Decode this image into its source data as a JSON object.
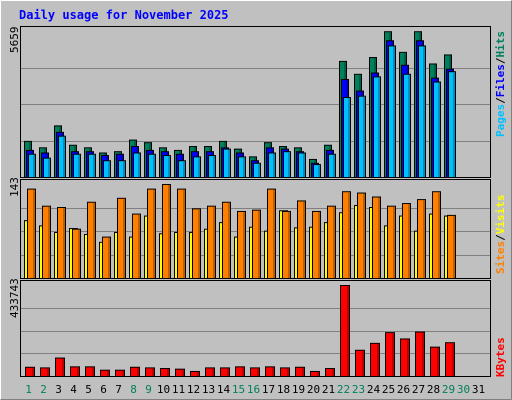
{
  "chart_data": {
    "type": "bar",
    "title": "Daily usage for November 2025",
    "categories": [
      "1",
      "2",
      "3",
      "4",
      "5",
      "6",
      "7",
      "8",
      "9",
      "10",
      "11",
      "12",
      "13",
      "14",
      "15",
      "16",
      "17",
      "18",
      "19",
      "20",
      "21",
      "22",
      "23",
      "24",
      "25",
      "26",
      "27",
      "28",
      "29",
      "30",
      "31"
    ],
    "weekend_days": [
      "1",
      "2",
      "8",
      "9",
      "15",
      "16",
      "22",
      "23",
      "29",
      "30"
    ],
    "panels": [
      {
        "name": "pages-files-hits",
        "ymax_label": "5659",
        "ymax": 5659,
        "grid": true,
        "legend_right": [
          "Pages",
          "/",
          "Files",
          "/",
          "Hits"
        ],
        "series": [
          {
            "name": "Hits",
            "color": "#00805c",
            "values": [
              1400,
              1150,
              2000,
              1250,
              1150,
              950,
              1000,
              1450,
              1350,
              1150,
              1050,
              1200,
              1200,
              1400,
              1100,
              800,
              1350,
              1200,
              1150,
              700,
              1250,
              4500,
              4000,
              4650,
              5650,
              4850,
              5650,
              4400,
              4750
            ]
          },
          {
            "name": "Files",
            "color": "#0000ff",
            "values": [
              1050,
              950,
              1750,
              1000,
              1000,
              850,
              900,
              1200,
              1050,
              1000,
              900,
              1000,
              1000,
              1150,
              950,
              650,
              1150,
              1100,
              1000,
              550,
              1050,
              3800,
              3350,
              4050,
              5300,
              4350,
              5300,
              3850,
              4200
            ]
          },
          {
            "name": "Pages",
            "color": "#00c0ff",
            "values": [
              900,
              750,
              1600,
              900,
              900,
              650,
              650,
              950,
              900,
              850,
              650,
              800,
              850,
              1100,
              800,
              550,
              950,
              1000,
              950,
              500,
              900,
              3100,
              3150,
              3900,
              5100,
              4000,
              5100,
              3700,
              4100
            ]
          }
        ]
      },
      {
        "name": "visits-sites",
        "ymax_label": "143",
        "ymax": 143,
        "grid": true,
        "legend_right": [
          "Sites",
          "/",
          "Visits"
        ],
        "series": [
          {
            "name": "Visits",
            "color": "#ffff00",
            "values": [
              88,
              80,
              70,
              76,
              67,
              55,
              70,
              63,
              95,
              68,
              70,
              70,
              75,
              85,
              63,
              78,
              72,
              103,
              77,
              78,
              85,
              100,
              111,
              108,
              80,
              95,
              72,
              98,
              95
            ]
          },
          {
            "name": "Sites",
            "color": "#ff8000",
            "values": [
              136,
              110,
              108,
              75,
              116,
              63,
              122,
              98,
              136,
              143,
              136,
              106,
              110,
              116,
              102,
              104,
              136,
              102,
              118,
              102,
              110,
              132,
              130,
              124,
              110,
              114,
              120,
              132,
              96
            ]
          }
        ]
      },
      {
        "name": "kbytes",
        "ymax_label": "433743",
        "ymax": 433743,
        "grid": true,
        "legend_right": [
          "KBytes"
        ],
        "series": [
          {
            "name": "KBytes",
            "color": "#ff0000",
            "values": [
              44000,
              41000,
              88000,
              46000,
              46000,
              30000,
              30000,
              44000,
              41000,
              38000,
              35000,
              24000,
              41000,
              41000,
              46000,
              41000,
              46000,
              41000,
              44000,
              24000,
              38000,
              433743,
              125000,
              158000,
              209000,
              179000,
              212000,
              140000,
              161000
            ]
          }
        ]
      }
    ]
  }
}
